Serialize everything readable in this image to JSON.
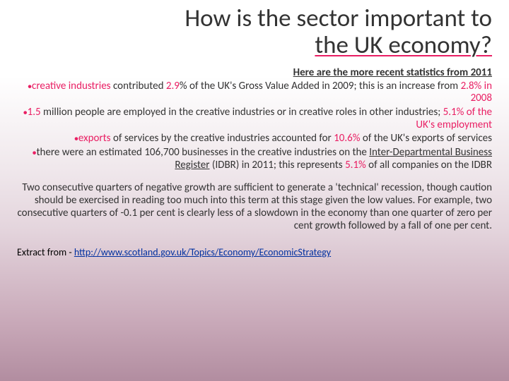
{
  "title_line1": "How is the sector important to",
  "title_line2": "the UK economy?",
  "intro": "Here are the more recent statistics from 2011",
  "bullets": {
    "b1_a": "creative industries",
    "b1_b": " contributed ",
    "b1_c": "2.9",
    "b1_d": "%",
    "b1_e": " of the UK's Gross Value Added in 2009; this is an increase from ",
    "b1_f": "2.8% in 2008",
    "b2_a": "1.5",
    "b2_b": " million people are employed in the creative industries or in creative roles in other industries; ",
    "b2_c": "5.1% of the UK's employment",
    "b3_a": "exports",
    "b3_b": " of services by the creative industries accounted for ",
    "b3_c": "10.6%",
    "b3_d": " of the UK's exports of services",
    "b4_a": "there were an estimated 106,700 businesses in the creative industries on the ",
    "b4_link": "Inter-Departmental Business Register",
    "b4_b": " (IDBR) in 2011; this represents ",
    "b4_c": "5.1%",
    "b4_d": " of all companies on the IDBR"
  },
  "paragraph": "Two consecutive quarters of negative growth are sufficient to generate a 'technical' recession, though caution should be exercised in reading too much into this term at this stage given the low values. For example, two consecutive quarters of -0.1 per cent is clearly less of a slowdown in the economy than one quarter of zero per cent growth followed by a fall of one per cent.",
  "extract_prefix": "Extract from - ",
  "extract_url": "http://www.scotland.gov.uk/Topics/Economy/EconomicStrategy",
  "colors": {
    "accent": "#e91e63",
    "link": "#0030a0",
    "text": "#333333"
  }
}
